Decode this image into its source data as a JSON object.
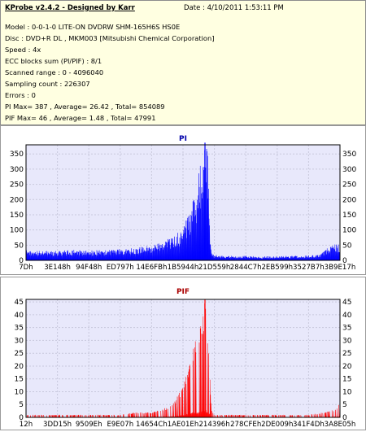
{
  "header": {
    "title": "KProbe v2.4.2 - Designed by Karr",
    "date": "Date : 4/10/2011 1:53:11 PM"
  },
  "info_lines": [
    "Model : 0-0-1-0 LITE-ON DVDRW SHM-165H6S HS0E",
    "Disc : DVD+R DL , MKM003 [Mitsubishi Chemical Corporation]",
    "Speed : 4x",
    "ECC blocks sum (PI/PIF) : 8/1",
    "Scanned range : 0 - 4096040",
    "Sampling count : 226307",
    "Errors : 0",
    "PI Max= 387 , Average= 26.42 , Total= 854089",
    "PIF Max= 46 , Average= 1.48 , Total= 47991"
  ],
  "chart_data": [
    {
      "type": "area",
      "title": "PI",
      "color": "#0000ff",
      "ylim": [
        0,
        380
      ],
      "yticks": [
        0,
        50,
        100,
        150,
        200,
        250,
        300,
        350
      ],
      "xticks": [
        "7Dh",
        "3E148h",
        "94F48h",
        "ED797h",
        "14E6FBh",
        "1B5944h",
        "21D559h",
        "2844C7h",
        "2EB599h",
        "3527B7h",
        "3B9E17h"
      ],
      "xlim": [
        0,
        1
      ],
      "series": [
        {
          "x": [
            0,
            0.03,
            0.06,
            0.09,
            0.12,
            0.15,
            0.18,
            0.21,
            0.24,
            0.27,
            0.3,
            0.33,
            0.36,
            0.39,
            0.42,
            0.44,
            0.46,
            0.48,
            0.5,
            0.51,
            0.52,
            0.53,
            0.54,
            0.55,
            0.555,
            0.56,
            0.565,
            0.57,
            0.575,
            0.58,
            0.585,
            0.59,
            0.6,
            0.65,
            0.7,
            0.75,
            0.8,
            0.85,
            0.9,
            0.94,
            0.96,
            0.98,
            1.0
          ],
          "y": [
            35,
            34,
            31,
            31,
            32,
            35,
            33,
            33,
            34,
            35,
            37,
            40,
            43,
            48,
            55,
            62,
            75,
            90,
            115,
            135,
            160,
            190,
            230,
            285,
            320,
            345,
            360,
            387,
            370,
            340,
            120,
            25,
            18,
            15,
            15,
            14,
            14,
            15,
            16,
            20,
            45,
            55,
            56
          ]
        }
      ]
    },
    {
      "type": "bar",
      "title": "PIF",
      "color": "#ff0000",
      "ylim": [
        0,
        46
      ],
      "yticks": [
        0,
        5,
        10,
        15,
        20,
        25,
        30,
        35,
        40,
        45
      ],
      "xticks": [
        "12h",
        "3DD15h",
        "9509Eh",
        "E9E07h",
        "14654Ch",
        "1AE01Eh",
        "214396h",
        "278CFEh",
        "2DE009h",
        "341F4Dh",
        "3A8E05h"
      ],
      "xlim": [
        0,
        1
      ],
      "series": [
        {
          "x": [
            0,
            0.05,
            0.1,
            0.15,
            0.2,
            0.25,
            0.3,
            0.35,
            0.4,
            0.43,
            0.45,
            0.47,
            0.48,
            0.49,
            0.5,
            0.51,
            0.52,
            0.53,
            0.54,
            0.55,
            0.56,
            0.565,
            0.57,
            0.575,
            0.58,
            0.585,
            0.59,
            0.6,
            0.65,
            0.7,
            0.75,
            0.8,
            0.85,
            0.9,
            0.95,
            0.98,
            1.0
          ],
          "y": [
            1,
            1,
            1,
            1,
            1,
            1,
            1,
            2,
            2,
            3,
            4,
            6,
            8,
            10,
            13,
            17,
            22,
            26,
            30,
            33,
            38,
            41,
            46,
            40,
            30,
            18,
            3,
            1,
            1,
            1,
            1,
            1,
            1,
            1,
            2,
            3,
            6
          ]
        }
      ]
    }
  ]
}
